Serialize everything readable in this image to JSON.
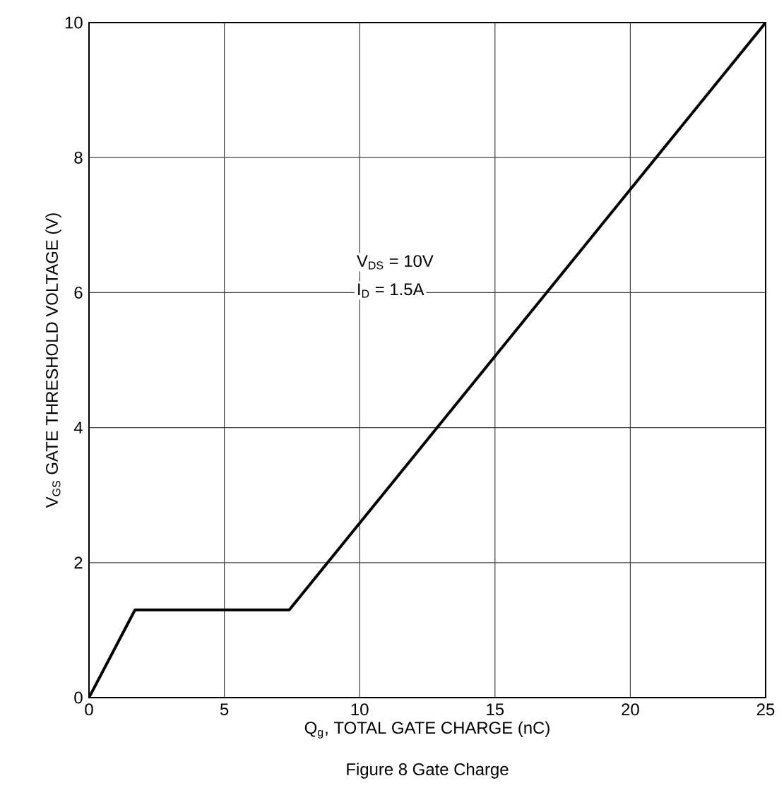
{
  "chart_data": {
    "type": "line",
    "title": "Figure 8 Gate Charge",
    "xlabel": "Q$_{g}$, TOTAL GATE CHARGE (nC)",
    "ylabel": "V$_{GS}$ GATE THRESHOLD VOLTAGE (V)",
    "annotations": [
      "V$_{DS}$ = 10V",
      "I$_{D}$ = 1.5A"
    ],
    "x": [
      0,
      1.7,
      7.4,
      25
    ],
    "series": [
      {
        "color": "#000000",
        "values": [
          0,
          1.3,
          1.3,
          10
        ]
      }
    ],
    "xlim": [
      0,
      25
    ],
    "ylim": [
      0,
      10
    ],
    "xticks": [
      0,
      5,
      10,
      15,
      20,
      25
    ],
    "yticks": [
      0,
      2,
      4,
      6,
      8,
      10
    ],
    "grid": true,
    "marker": "none",
    "line_style": "solid"
  }
}
